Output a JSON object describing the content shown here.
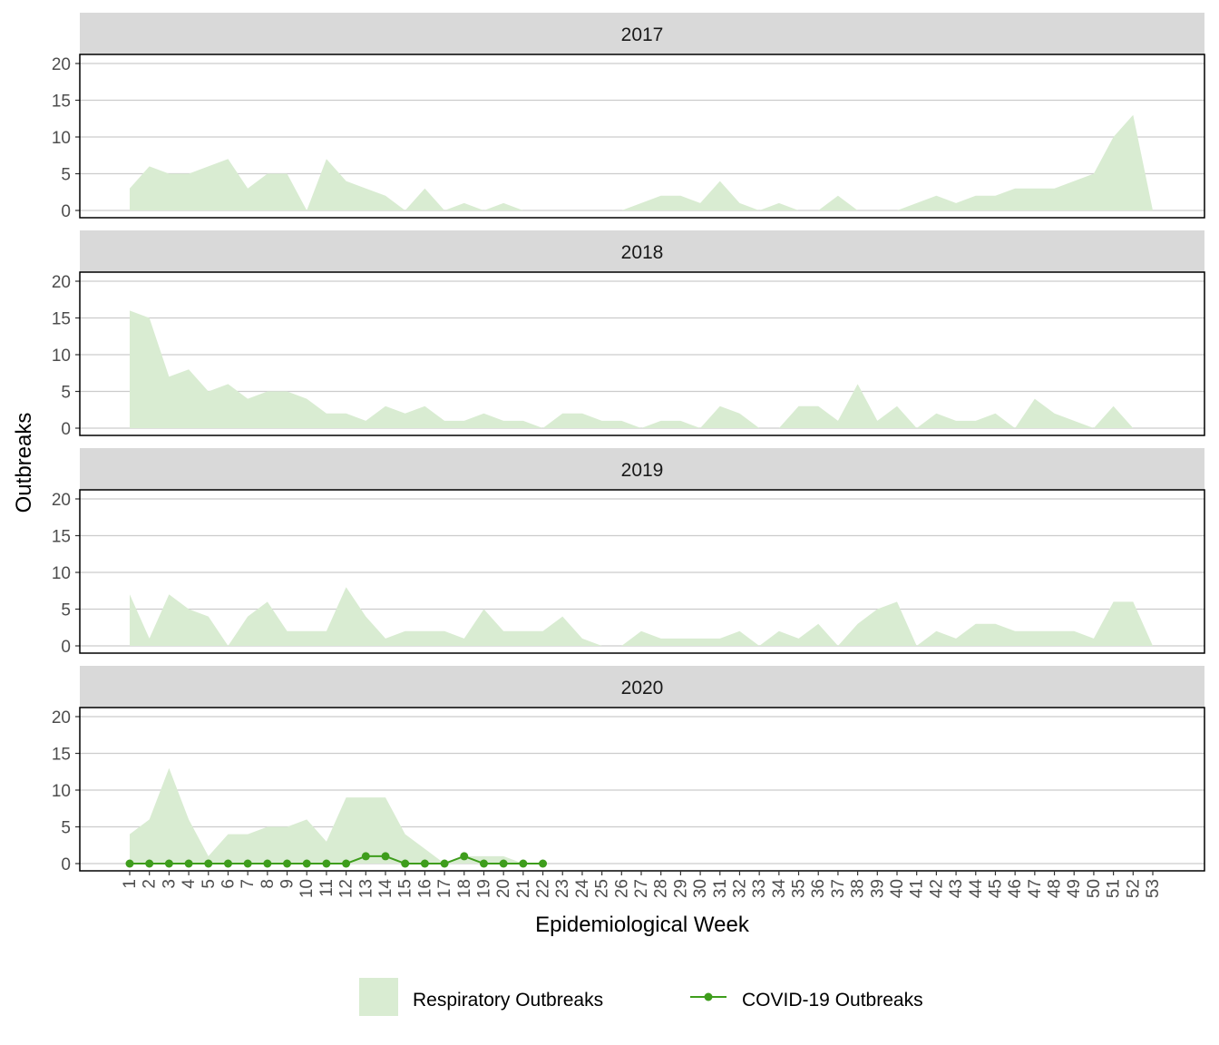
{
  "chart_data": {
    "type": "area",
    "xlabel": "Epidemiological Week",
    "ylabel": "Outbreaks",
    "x": [
      1,
      2,
      3,
      4,
      5,
      6,
      7,
      8,
      9,
      10,
      11,
      12,
      13,
      14,
      15,
      16,
      17,
      18,
      19,
      20,
      21,
      22,
      23,
      24,
      25,
      26,
      27,
      28,
      29,
      30,
      31,
      32,
      33,
      34,
      35,
      36,
      37,
      38,
      39,
      40,
      41,
      42,
      43,
      44,
      45,
      46,
      47,
      48,
      49,
      50,
      51,
      52,
      53
    ],
    "xlim": [
      1,
      53
    ],
    "ylim": [
      0,
      20
    ],
    "yticks": [
      0,
      5,
      10,
      15,
      20
    ],
    "grid": true,
    "legend_position": "bottom",
    "legend": [
      {
        "name": "Respiratory Outbreaks",
        "kind": "area"
      },
      {
        "name": "COVID-19 Outbreaks",
        "kind": "line-point"
      }
    ],
    "colors": {
      "respiratory_fill": "#d9ecd2",
      "covid_line": "#3e9d1c",
      "strip_bg": "#d9d9d9",
      "grid": "#cccccc",
      "panel_border": "#000000"
    },
    "panels": [
      {
        "label": "2017",
        "respiratory": [
          3,
          6,
          5,
          5,
          6,
          7,
          3,
          5,
          5,
          0,
          7,
          4,
          3,
          2,
          0,
          3,
          0,
          1,
          0,
          1,
          0,
          0,
          0,
          0,
          0,
          0,
          1,
          2,
          2,
          1,
          4,
          1,
          0,
          1,
          0,
          0,
          2,
          0,
          0,
          0,
          1,
          2,
          1,
          2,
          2,
          3,
          3,
          3,
          4,
          5,
          10,
          13,
          0
        ]
      },
      {
        "label": "2018",
        "respiratory": [
          16,
          15,
          7,
          8,
          5,
          6,
          4,
          5,
          5,
          4,
          2,
          2,
          1,
          3,
          2,
          3,
          1,
          1,
          2,
          1,
          1,
          0,
          2,
          2,
          1,
          1,
          0,
          1,
          1,
          0,
          3,
          2,
          0,
          0,
          3,
          3,
          1,
          6,
          1,
          3,
          0,
          2,
          1,
          1,
          2,
          0,
          4,
          2,
          1,
          0,
          3,
          0,
          0
        ]
      },
      {
        "label": "2019",
        "respiratory": [
          7,
          1,
          7,
          5,
          4,
          0,
          4,
          6,
          2,
          2,
          2,
          8,
          4,
          1,
          2,
          2,
          2,
          1,
          5,
          2,
          2,
          2,
          4,
          1,
          0,
          0,
          2,
          1,
          1,
          1,
          1,
          2,
          0,
          2,
          1,
          3,
          0,
          3,
          5,
          6,
          0,
          2,
          1,
          3,
          3,
          2,
          2,
          2,
          2,
          1,
          6,
          6,
          0
        ]
      },
      {
        "label": "2020",
        "respiratory": [
          4,
          6,
          13,
          6,
          1,
          4,
          4,
          5,
          5,
          6,
          3,
          9,
          9,
          9,
          4,
          2,
          0,
          1,
          1,
          1,
          0,
          0
        ],
        "covid": [
          0,
          0,
          0,
          0,
          0,
          0,
          0,
          0,
          0,
          0,
          0,
          0,
          1,
          1,
          0,
          0,
          0,
          1,
          0,
          0,
          0,
          0
        ]
      }
    ]
  }
}
